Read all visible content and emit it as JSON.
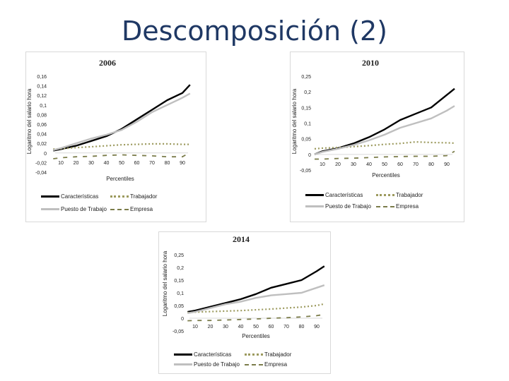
{
  "slide": {
    "title": "Descomposición (2)"
  },
  "colors": {
    "caracteristicas": "#000000",
    "puesto": "#bfbfbf",
    "trabajador": "#9c9a5e",
    "empresa": "#7b7c4a"
  },
  "chart_data": [
    {
      "type": "line",
      "title": "2006",
      "xlabel": "Percentiles",
      "ylabel": "Logaritmo del salario hora",
      "x": [
        5,
        10,
        20,
        30,
        40,
        50,
        60,
        70,
        80,
        90,
        95
      ],
      "x_ticks": [
        "10",
        "20",
        "30",
        "40",
        "50",
        "60",
        "70",
        "80",
        "90"
      ],
      "y_ticks": [
        "0,16",
        "0,14",
        "0,12",
        "0,1",
        "0,08",
        "0,06",
        "0,04",
        "0,02",
        "0",
        "-0,02",
        "-0,04"
      ],
      "ylim": [
        -0.04,
        0.16
      ],
      "series": [
        {
          "name": "Características",
          "values": [
            0.005,
            0.008,
            0.015,
            0.025,
            0.035,
            0.05,
            0.07,
            0.09,
            0.11,
            0.125,
            0.142
          ]
        },
        {
          "name": "Trabajador",
          "values": [
            0.008,
            0.009,
            0.011,
            0.013,
            0.015,
            0.017,
            0.018,
            0.019,
            0.019,
            0.018,
            0.018
          ]
        },
        {
          "name": "Puesto de Trabajo",
          "values": [
            0.006,
            0.01,
            0.02,
            0.03,
            0.038,
            0.048,
            0.065,
            0.085,
            0.1,
            0.115,
            0.124
          ]
        },
        {
          "name": "Empresa",
          "values": [
            -0.012,
            -0.01,
            -0.008,
            -0.007,
            -0.005,
            -0.004,
            -0.005,
            -0.006,
            -0.008,
            -0.008,
            0.001
          ]
        }
      ],
      "legend": [
        "Características",
        "Trabajador",
        "Puesto de Trabajo",
        "Empresa"
      ]
    },
    {
      "type": "line",
      "title": "2010",
      "xlabel": "Percentiles",
      "ylabel": "Logaritmo del salario hora",
      "x": [
        5,
        10,
        20,
        30,
        40,
        50,
        60,
        70,
        80,
        90,
        95
      ],
      "x_ticks": [
        "10",
        "20",
        "30",
        "40",
        "50",
        "60",
        "70",
        "80",
        "90"
      ],
      "y_ticks": [
        "0,25",
        "0,2",
        "0,15",
        "0,1",
        "0,05",
        "0",
        "-0,05"
      ],
      "ylim": [
        -0.05,
        0.25
      ],
      "series": [
        {
          "name": "Características",
          "values": [
            0.0,
            0.01,
            0.02,
            0.035,
            0.055,
            0.08,
            0.11,
            0.13,
            0.15,
            0.19,
            0.21
          ]
        },
        {
          "name": "Trabajador",
          "values": [
            0.018,
            0.02,
            0.022,
            0.025,
            0.028,
            0.032,
            0.035,
            0.04,
            0.038,
            0.037,
            0.036
          ]
        },
        {
          "name": "Puesto de Trabajo",
          "values": [
            0.0,
            0.008,
            0.018,
            0.03,
            0.045,
            0.063,
            0.085,
            0.1,
            0.115,
            0.14,
            0.155
          ]
        },
        {
          "name": "Empresa",
          "values": [
            -0.015,
            -0.015,
            -0.013,
            -0.012,
            -0.01,
            -0.008,
            -0.007,
            -0.006,
            -0.006,
            -0.004,
            0.01
          ]
        }
      ],
      "legend": [
        "Características",
        "Trabajador",
        "Puesto de Trabajo",
        "Empresa"
      ]
    },
    {
      "type": "line",
      "title": "2014",
      "xlabel": "Percentiles",
      "ylabel": "Logaritmo del salario hora",
      "x": [
        5,
        10,
        20,
        30,
        40,
        50,
        60,
        70,
        80,
        90,
        95
      ],
      "x_ticks": [
        "10",
        "20",
        "30",
        "40",
        "50",
        "60",
        "70",
        "80",
        "90"
      ],
      "y_ticks": [
        "0,25",
        "0,2",
        "0,15",
        "0,1",
        "0,05",
        "0",
        "-0,05"
      ],
      "ylim": [
        -0.05,
        0.25
      ],
      "series": [
        {
          "name": "Características",
          "values": [
            0.025,
            0.03,
            0.045,
            0.06,
            0.075,
            0.095,
            0.12,
            0.135,
            0.15,
            0.185,
            0.205
          ]
        },
        {
          "name": "Trabajador",
          "values": [
            0.022,
            0.024,
            0.026,
            0.028,
            0.03,
            0.033,
            0.036,
            0.04,
            0.044,
            0.05,
            0.056
          ]
        },
        {
          "name": "Puesto de Trabajo",
          "values": [
            0.02,
            0.025,
            0.04,
            0.055,
            0.065,
            0.08,
            0.09,
            0.095,
            0.1,
            0.12,
            0.13
          ]
        },
        {
          "name": "Empresa",
          "values": [
            -0.01,
            -0.009,
            -0.009,
            -0.007,
            -0.005,
            -0.003,
            0.0,
            0.002,
            0.005,
            0.01,
            0.015
          ]
        }
      ],
      "legend": [
        "Características",
        "Trabajador",
        "Puesto de Trabajo",
        "Empresa"
      ]
    }
  ]
}
